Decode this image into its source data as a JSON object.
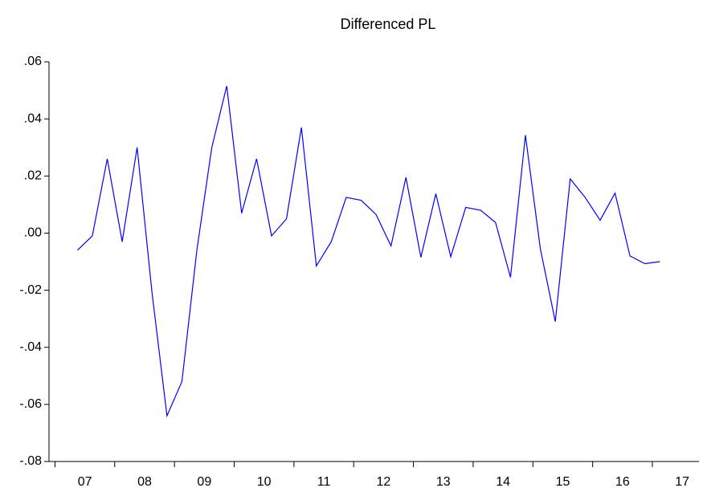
{
  "chart_data": {
    "type": "line",
    "title": "Differenced PL",
    "x": [
      2007.375,
      2007.625,
      2007.875,
      2008.125,
      2008.375,
      2008.625,
      2008.875,
      2009.125,
      2009.375,
      2009.625,
      2009.875,
      2010.125,
      2010.375,
      2010.625,
      2010.875,
      2011.125,
      2011.375,
      2011.625,
      2011.875,
      2012.125,
      2012.375,
      2012.625,
      2012.875,
      2013.125,
      2013.375,
      2013.625,
      2013.875,
      2014.125,
      2014.375,
      2014.625,
      2014.875,
      2015.125,
      2015.375,
      2015.625,
      2015.875,
      2016.125,
      2016.375,
      2016.625,
      2016.875,
      2017.125
    ],
    "series": [
      {
        "color": "#0000ff",
        "values": [
          -0.006,
          -0.001,
          0.026,
          -0.003,
          0.03,
          -0.021,
          -0.064,
          -0.052,
          -0.006,
          0.03,
          0.0515,
          0.007,
          0.026,
          -0.001,
          0.005,
          0.037,
          -0.0115,
          -0.003,
          0.0125,
          0.0115,
          0.0065,
          -0.0045,
          0.0195,
          -0.0085,
          0.0138,
          -0.0083,
          0.009,
          0.008,
          0.0037,
          -0.0155,
          0.0343,
          -0.0055,
          -0.031,
          0.019,
          0.0125,
          0.0045,
          0.014,
          -0.008,
          -0.0107,
          -0.01
        ]
      }
    ],
    "xlim": [
      2006.9,
      2017.78
    ],
    "xticks": [
      {
        "value": 2007,
        "label": "07"
      },
      {
        "value": 2008,
        "label": "08"
      },
      {
        "value": 2009,
        "label": "09"
      },
      {
        "value": 2010,
        "label": "10"
      },
      {
        "value": 2011,
        "label": "11"
      },
      {
        "value": 2012,
        "label": "12"
      },
      {
        "value": 2013,
        "label": "13"
      },
      {
        "value": 2014,
        "label": "14"
      },
      {
        "value": 2015,
        "label": "15"
      },
      {
        "value": 2016,
        "label": "16"
      },
      {
        "value": 2017,
        "label": "17"
      }
    ],
    "ylim": [
      -0.08,
      0.06
    ],
    "yticks": [
      {
        "value": -0.08,
        "label": "-.08"
      },
      {
        "value": -0.06,
        "label": "-.06"
      },
      {
        "value": -0.04,
        "label": "-.04"
      },
      {
        "value": -0.02,
        "label": "-.02"
      },
      {
        "value": 0,
        "label": ".00"
      },
      {
        "value": 0.02,
        "label": ".02"
      },
      {
        "value": 0.04,
        "label": ".04"
      },
      {
        "value": 0.06,
        "label": ".06"
      }
    ],
    "grid": false
  }
}
